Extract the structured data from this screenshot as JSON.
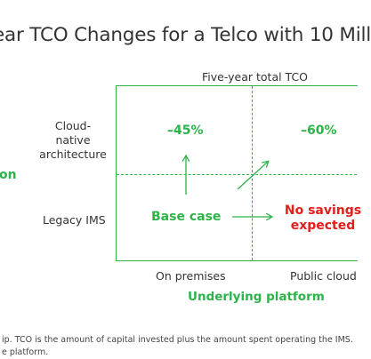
{
  "title": "ear TCO Changes for a Telco with 10 Mill",
  "top_axis_label": "Five-year total TCO",
  "row_labels": {
    "cloud_native_line1": "Cloud-native",
    "cloud_native_line2": "architecture",
    "legacy": "Legacy IMS"
  },
  "left_edge_label": "on",
  "cells": {
    "cloud_on_prem": "–45%",
    "cloud_public": "–60%",
    "legacy_on_prem": "Base case",
    "legacy_public_line1": "No savings",
    "legacy_public_line2": "expected"
  },
  "column_labels": {
    "on_premises": "On premises",
    "public_cloud": "Public cloud"
  },
  "bottom_axis_label": "Underlying platform",
  "footnote": {
    "line1": "ip. TCO is the amount of capital invested plus the amount spent operating the IMS.",
    "line2": "e platform."
  },
  "colors": {
    "green": "#2db34a",
    "red": "#e0201a",
    "text": "#333333"
  }
}
